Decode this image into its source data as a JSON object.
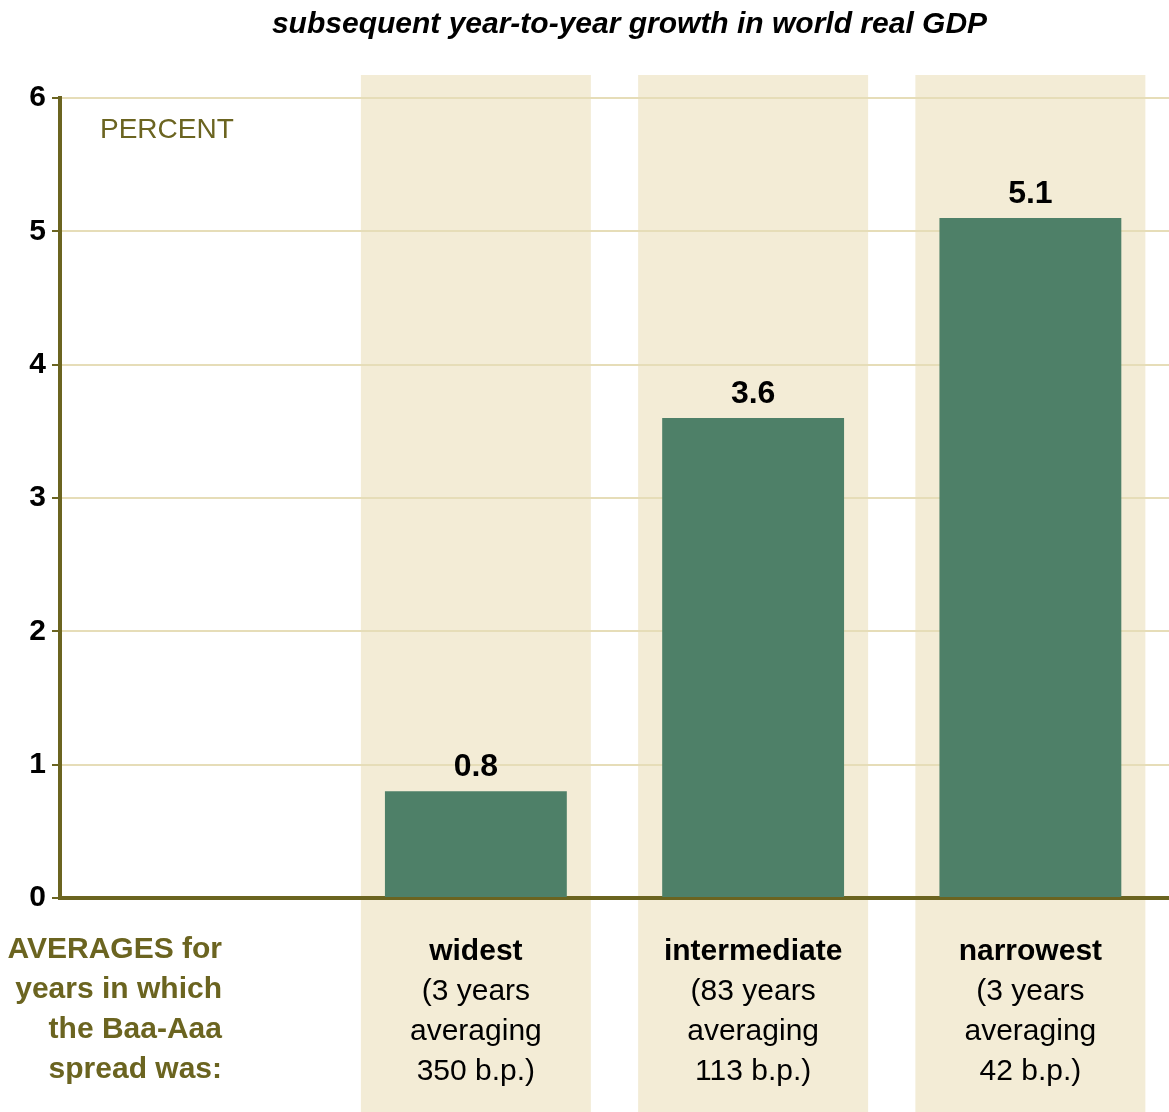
{
  "chart_data": {
    "type": "bar",
    "title": "subsequent year-to-year growth in world real GDP",
    "ylabel": "PERCENT",
    "xlabel": "AVERAGES for\nyears in which\nthe Baa-Aaa\nspread was:",
    "categories": [
      null,
      "widest\n(3 years\naveraging\n350 b.p.)",
      "intermediate\n(83 years\naveraging\n113 b.p.)",
      "narrowest\n(3 years\naveraging\n42 b.p.)"
    ],
    "values": [
      null,
      0.8,
      3.6,
      5.1
    ],
    "color": "#4e8068",
    "ylim": [
      0,
      6
    ],
    "yticks": [
      0,
      1,
      2,
      3,
      4,
      5,
      6
    ],
    "bands": [
      {
        "axis": "x",
        "from": "widest\n(3 years\naveraging\n350 b.p.)",
        "to": "widest\n(3 years\naveraging\n350 b.p.)",
        "color": "#f3ecd6"
      },
      {
        "axis": "x",
        "from": "intermediate\n(83 years\naveraging\n113 b.p.)",
        "to": "intermediate\n(83 years\naveraging\n113 b.p.)",
        "color": "#f3ecd6"
      },
      {
        "axis": "x",
        "from": "narrowest\n(3 years\naveraging\n42 b.p.)",
        "to": "narrowest\n(3 years\naveraging\n42 b.p.)",
        "color": "#f3ecd6"
      }
    ],
    "grid": "y",
    "data_labels": true,
    "legend": false
  }
}
